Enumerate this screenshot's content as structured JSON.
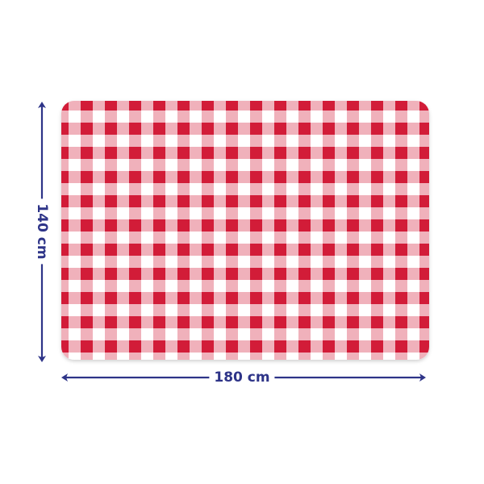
{
  "product": {
    "pattern": "red-white-gingham",
    "colors": {
      "red": "#d21f37",
      "pink": "#f2b3bd",
      "white": "#ffffff",
      "dimension": "#2e3488"
    }
  },
  "dimensions": {
    "width_label": "180 cm",
    "height_label": "140 cm"
  }
}
